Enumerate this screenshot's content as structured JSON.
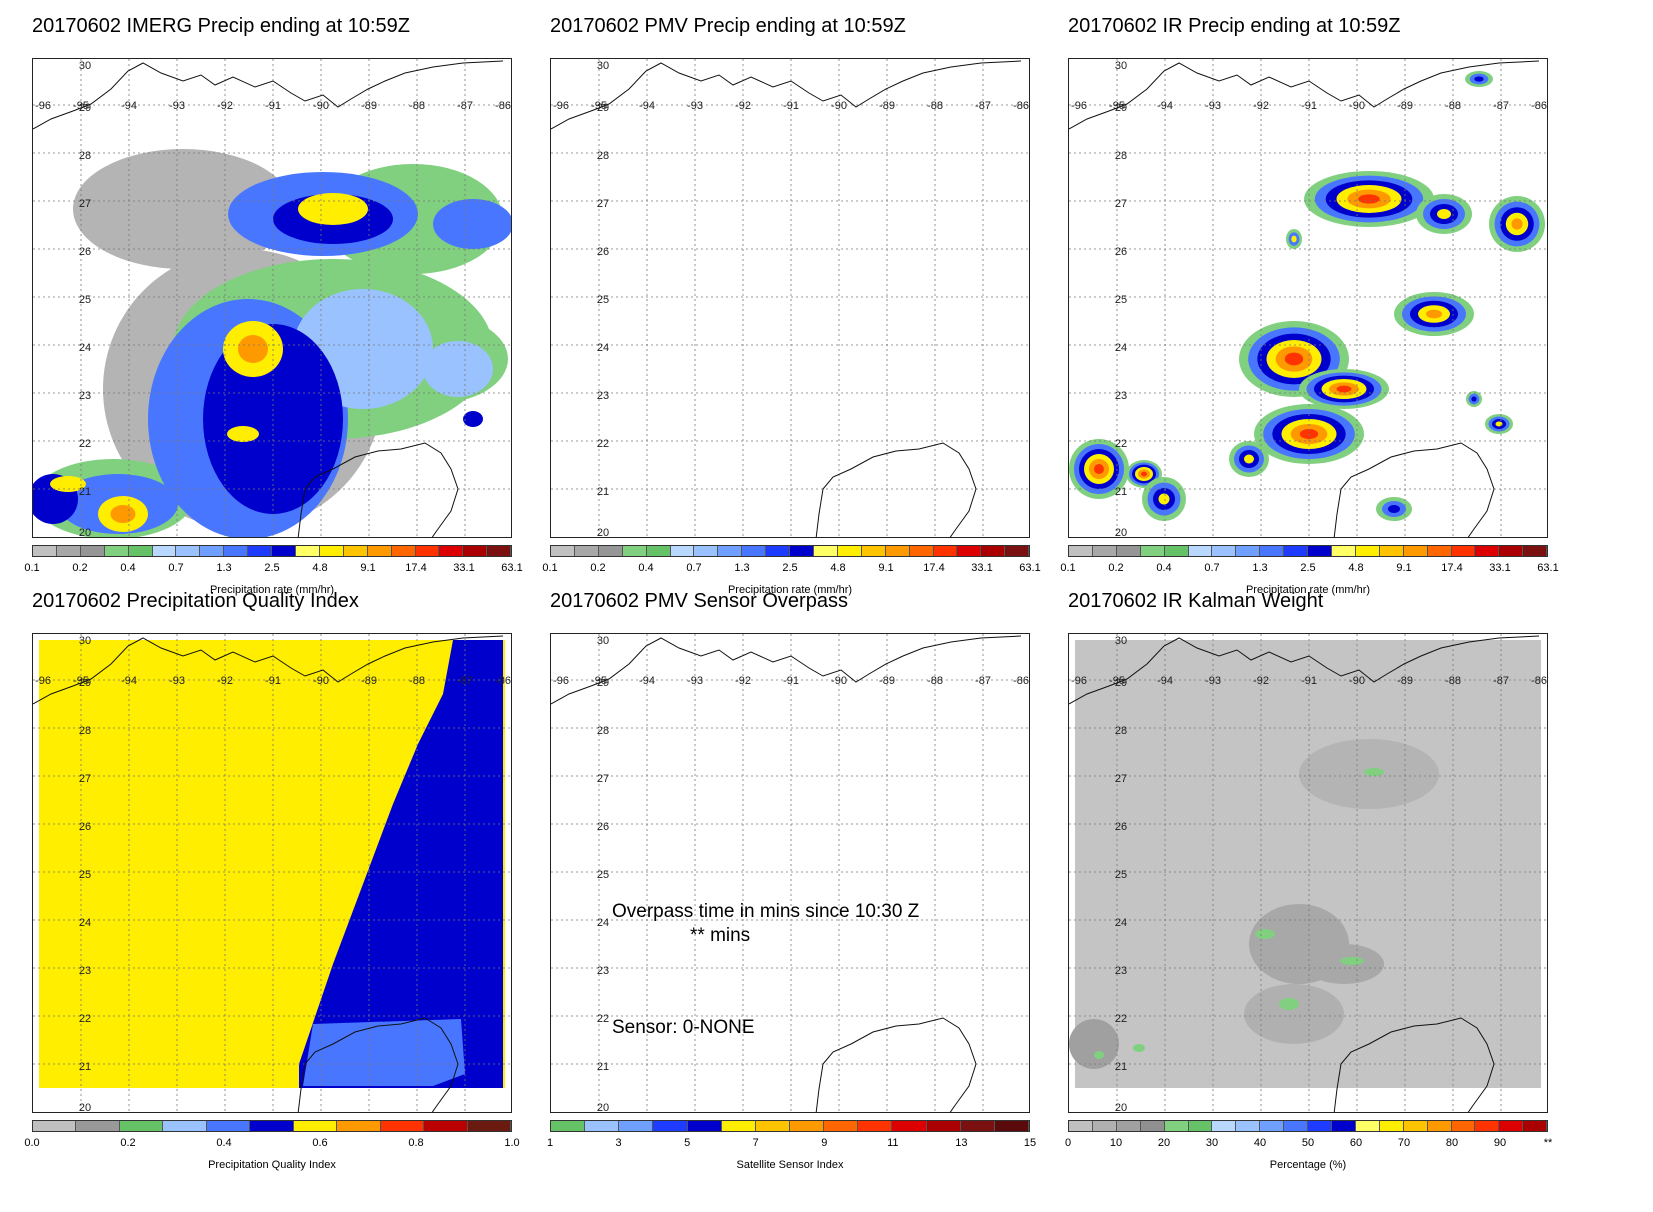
{
  "map_ticks": {
    "lon": [
      "-96",
      "-95",
      "-94",
      "-93",
      "-92",
      "-91",
      "-90",
      "-89",
      "-88",
      "-87",
      "-86"
    ],
    "lat": [
      "30",
      "29",
      "28",
      "27",
      "26",
      "25",
      "24",
      "23",
      "22",
      "21",
      "20"
    ]
  },
  "panels": [
    {
      "title": "20170602 IMERG Precip ending at 10:59Z",
      "kind": "precip",
      "colorbar_label": "Precipitation rate (mm/hr)",
      "colorbar_ticks": [
        "0.1",
        "0.2",
        "0.4",
        "0.7",
        "1.3",
        "2.5",
        "4.8",
        "9.1",
        "17.4",
        "33.1",
        "63.1"
      ],
      "colors": [
        "#c0c0c0",
        "#a8a8a8",
        "#969696",
        "#80d080",
        "#66c266",
        "#b8d8ff",
        "#99c2ff",
        "#6fa0ff",
        "#4876ff",
        "#1e3cff",
        "#0000cc",
        "#ffff66",
        "#ffee00",
        "#ffc400",
        "#ff9900",
        "#ff6600",
        "#ff3300",
        "#dd0000",
        "#aa0000",
        "#7a1010"
      ]
    },
    {
      "title": "20170602 PMV Precip ending at 10:59Z",
      "kind": "empty",
      "colorbar_label": "Precipitation rate (mm/hr)",
      "colorbar_ticks": [
        "0.1",
        "0.2",
        "0.4",
        "0.7",
        "1.3",
        "2.5",
        "4.8",
        "9.1",
        "17.4",
        "33.1",
        "63.1"
      ],
      "colors": [
        "#c0c0c0",
        "#a8a8a8",
        "#969696",
        "#80d080",
        "#66c266",
        "#b8d8ff",
        "#99c2ff",
        "#6fa0ff",
        "#4876ff",
        "#1e3cff",
        "#0000cc",
        "#ffff66",
        "#ffee00",
        "#ffc400",
        "#ff9900",
        "#ff6600",
        "#ff3300",
        "#dd0000",
        "#aa0000",
        "#7a1010"
      ]
    },
    {
      "title": "20170602 IR Precip ending at 10:59Z",
      "kind": "ir",
      "colorbar_label": "Precipitation rate (mm/hr)",
      "colorbar_ticks": [
        "0.1",
        "0.2",
        "0.4",
        "0.7",
        "1.3",
        "2.5",
        "4.8",
        "9.1",
        "17.4",
        "33.1",
        "63.1"
      ],
      "colors": [
        "#c0c0c0",
        "#a8a8a8",
        "#969696",
        "#80d080",
        "#66c266",
        "#b8d8ff",
        "#99c2ff",
        "#6fa0ff",
        "#4876ff",
        "#1e3cff",
        "#0000cc",
        "#ffff66",
        "#ffee00",
        "#ffc400",
        "#ff9900",
        "#ff6600",
        "#ff3300",
        "#dd0000",
        "#aa0000",
        "#7a1010"
      ]
    },
    {
      "title": "20170602 Precipitation Quality Index",
      "kind": "quality",
      "colorbar_label": "Precipitation Quality Index",
      "colorbar_ticks": [
        "0.0",
        "0.2",
        "0.4",
        "0.6",
        "0.8",
        "1.0"
      ],
      "colors": [
        "#c0c0c0",
        "#999999",
        "#66c266",
        "#99c2ff",
        "#4876ff",
        "#0000cc",
        "#ffee00",
        "#ff9900",
        "#ff3300",
        "#bb0000",
        "#6b1a10"
      ]
    },
    {
      "title": "20170602 PMV Sensor Overpass",
      "kind": "overpass",
      "colorbar_label": "Satellite Sensor Index",
      "colorbar_ticks": [
        "1",
        "3",
        "5",
        "7",
        "9",
        "11",
        "13",
        "15"
      ],
      "colors": [
        "#66c266",
        "#99c2ff",
        "#6fa0ff",
        "#1e3cff",
        "#0000cc",
        "#ffee00",
        "#ffc400",
        "#ff9900",
        "#ff6600",
        "#ff3300",
        "#dd0000",
        "#aa0000",
        "#7a1010",
        "#5a0a0a"
      ],
      "overpass_text": "Overpass time in mins since 10:30 Z",
      "mins_text": "** mins",
      "sensor_text": "Sensor:   0-NONE"
    },
    {
      "title": "20170602 IR Kalman Weight",
      "kind": "kalman",
      "colorbar_label": "Percentage (%)",
      "colorbar_ticks": [
        "0",
        "10",
        "20",
        "30",
        "40",
        "50",
        "60",
        "70",
        "80",
        "90",
        "**"
      ],
      "colors": [
        "#c0c0c0",
        "#b0b0b0",
        "#a0a0a0",
        "#909090",
        "#80d080",
        "#66c266",
        "#b8d8ff",
        "#99c2ff",
        "#6fa0ff",
        "#4876ff",
        "#1e3cff",
        "#0000cc",
        "#ffff66",
        "#ffee00",
        "#ffc400",
        "#ff9900",
        "#ff6600",
        "#ff3300",
        "#dd0000",
        "#aa0000"
      ]
    }
  ]
}
